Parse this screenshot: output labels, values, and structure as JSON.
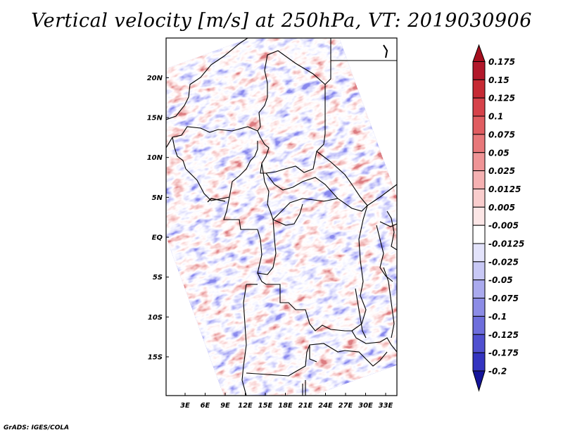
{
  "title": "Vertical velocity [m/s] at 250hPa, VT: 2019030906",
  "credit": "GrADS: IGES/COLA",
  "map": {
    "lat_ticks": [
      {
        "v": 20,
        "label": "20N"
      },
      {
        "v": 15,
        "label": "15N"
      },
      {
        "v": 10,
        "label": "10N"
      },
      {
        "v": 5,
        "label": "5N"
      },
      {
        "v": 0,
        "label": "EQ"
      },
      {
        "v": -5,
        "label": "5S"
      },
      {
        "v": -10,
        "label": "10S"
      },
      {
        "v": -15,
        "label": "15S"
      }
    ],
    "lon_ticks": [
      {
        "v": 3,
        "label": "3E"
      },
      {
        "v": 6,
        "label": "6E"
      },
      {
        "v": 9,
        "label": "9E"
      },
      {
        "v": 12,
        "label": "12E"
      },
      {
        "v": 15,
        "label": "15E"
      },
      {
        "v": 18,
        "label": "18E"
      },
      {
        "v": 21,
        "label": "21E"
      },
      {
        "v": 24,
        "label": "24E"
      },
      {
        "v": 27,
        "label": "27E"
      },
      {
        "v": 30,
        "label": "30E"
      },
      {
        "v": 33,
        "label": "33E"
      }
    ]
  },
  "colorbar": {
    "levels": [
      {
        "label": "0.175",
        "color": "#b2182b"
      },
      {
        "label": "0.15",
        "color": "#c62a34"
      },
      {
        "label": "0.125",
        "color": "#d6424a"
      },
      {
        "label": "0.1",
        "color": "#e05d61"
      },
      {
        "label": "0.075",
        "color": "#e8787a"
      },
      {
        "label": "0.05",
        "color": "#ef9496"
      },
      {
        "label": "0.025",
        "color": "#f5b1b2"
      },
      {
        "label": "0.0125",
        "color": "#f9cdcd"
      },
      {
        "label": "0.005",
        "color": "#fce6e6"
      },
      {
        "label": "-0.005",
        "color": "#ffffff"
      },
      {
        "label": "-0.0125",
        "color": "#e3e3fb"
      },
      {
        "label": "-0.025",
        "color": "#c8c8f5"
      },
      {
        "label": "-0.05",
        "color": "#aaaaee"
      },
      {
        "label": "-0.075",
        "color": "#8c8ce6"
      },
      {
        "label": "-0.1",
        "color": "#6e6edc"
      },
      {
        "label": "-0.125",
        "color": "#5050d0"
      },
      {
        "label": "-0.175",
        "color": "#3434c0"
      },
      {
        "label": "-0.2",
        "color": "#1c1cac"
      }
    ],
    "top_color": "#a50f1e",
    "bottom_color": "#14149a"
  }
}
